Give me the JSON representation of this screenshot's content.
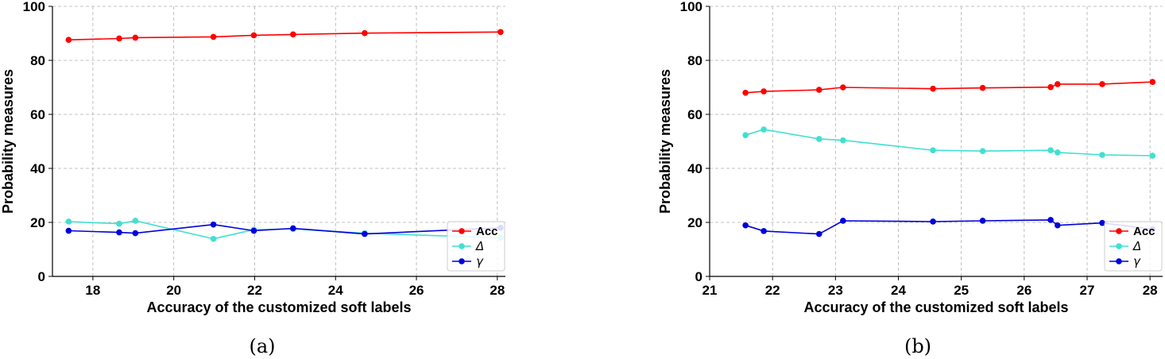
{
  "chart_data": [
    {
      "type": "line",
      "caption": "(a)",
      "xlabel": "Accuracy of the customized soft labels",
      "ylabel": "Probability measures",
      "xlim": [
        17.0,
        28.2
      ],
      "ylim": [
        0,
        100
      ],
      "xticks": [
        18,
        20,
        22,
        24,
        26,
        28
      ],
      "yticks": [
        0,
        20,
        40,
        60,
        80,
        100
      ],
      "grid": true,
      "legend_position": "bottom-right",
      "series": [
        {
          "name": "Acc",
          "color": "#ff0000",
          "x": [
            17.4,
            18.65,
            19.05,
            20.98,
            21.98,
            22.95,
            24.72,
            28.08
          ],
          "y": [
            87.6,
            88.1,
            88.4,
            88.7,
            89.3,
            89.6,
            90.1,
            90.5
          ]
        },
        {
          "name": "Δ",
          "color": "#40e0d0",
          "x": [
            17.4,
            18.65,
            19.05,
            20.98,
            21.98,
            22.95,
            24.72,
            28.08
          ],
          "y": [
            20.3,
            19.5,
            20.6,
            13.9,
            17.3,
            17.6,
            16.0,
            14.3
          ]
        },
        {
          "name": "γ",
          "color": "#0000dd",
          "x": [
            17.4,
            18.65,
            19.05,
            20.98,
            21.98,
            22.95,
            24.72,
            28.08
          ],
          "y": [
            16.9,
            16.3,
            16.0,
            19.2,
            16.9,
            17.8,
            15.7,
            18.0
          ]
        }
      ]
    },
    {
      "type": "line",
      "caption": "(b)",
      "xlabel": "Accuracy of the customized soft labels",
      "ylabel": "Probability measures",
      "xlim": [
        21.0,
        28.2
      ],
      "ylim": [
        0,
        100
      ],
      "xticks": [
        21,
        22,
        23,
        24,
        25,
        26,
        27,
        28
      ],
      "yticks": [
        0,
        20,
        40,
        60,
        80,
        100
      ],
      "grid": true,
      "legend_position": "bottom-right",
      "series": [
        {
          "name": "Acc",
          "color": "#ff0000",
          "x": [
            21.57,
            21.86,
            22.74,
            23.12,
            24.55,
            25.34,
            26.42,
            26.53,
            27.24,
            28.04
          ],
          "y": [
            68.0,
            68.5,
            69.1,
            70.0,
            69.5,
            69.8,
            70.1,
            71.2,
            71.2,
            72.0
          ]
        },
        {
          "name": "Δ",
          "color": "#40e0d0",
          "x": [
            21.57,
            21.86,
            22.74,
            23.12,
            24.55,
            25.34,
            26.42,
            26.53,
            27.24,
            28.04
          ],
          "y": [
            52.3,
            54.4,
            50.9,
            50.4,
            46.7,
            46.4,
            46.7,
            45.9,
            45.0,
            44.7
          ]
        },
        {
          "name": "γ",
          "color": "#0000dd",
          "x": [
            21.57,
            21.86,
            22.74,
            23.12,
            24.55,
            25.34,
            26.42,
            26.53,
            27.24,
            28.04
          ],
          "y": [
            18.9,
            16.8,
            15.7,
            20.6,
            20.3,
            20.6,
            20.9,
            18.9,
            19.8,
            17.5
          ]
        }
      ]
    }
  ]
}
